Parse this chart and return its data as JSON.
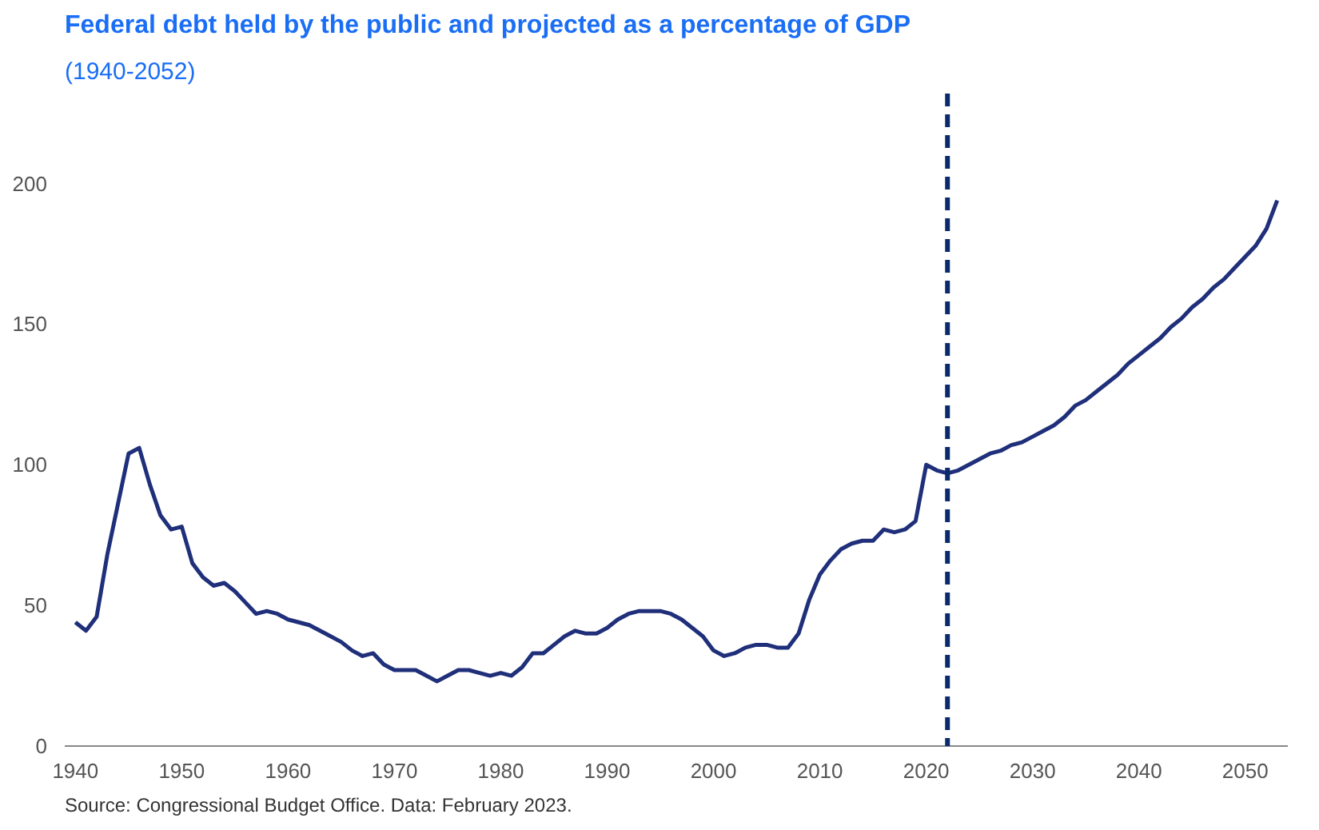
{
  "chart_data": {
    "type": "line",
    "title": "Federal debt held by the public and projected as a percentage of GDP",
    "subtitle": "(1940-2052)",
    "annotations": [
      "Source: Congressional Budget Office. Data: February 2023."
    ],
    "x": [
      1940,
      1941,
      1942,
      1943,
      1944,
      1945,
      1946,
      1947,
      1948,
      1949,
      1950,
      1951,
      1952,
      1953,
      1954,
      1955,
      1956,
      1957,
      1958,
      1959,
      1960,
      1961,
      1962,
      1963,
      1964,
      1965,
      1966,
      1967,
      1968,
      1969,
      1970,
      1971,
      1972,
      1973,
      1974,
      1975,
      1976,
      1977,
      1978,
      1979,
      1980,
      1981,
      1982,
      1983,
      1984,
      1985,
      1986,
      1987,
      1988,
      1989,
      1990,
      1991,
      1992,
      1993,
      1994,
      1995,
      1996,
      1997,
      1998,
      1999,
      2000,
      2001,
      2002,
      2003,
      2004,
      2005,
      2006,
      2007,
      2008,
      2009,
      2010,
      2011,
      2012,
      2013,
      2014,
      2015,
      2016,
      2017,
      2018,
      2019,
      2020,
      2021,
      2022,
      2023,
      2024,
      2025,
      2026,
      2027,
      2028,
      2029,
      2030,
      2031,
      2032,
      2033,
      2034,
      2035,
      2036,
      2037,
      2038,
      2039,
      2040,
      2041,
      2042,
      2043,
      2044,
      2045,
      2046,
      2047,
      2048,
      2049,
      2050,
      2051,
      2052,
      2053
    ],
    "series": [
      {
        "color": "#1f2f7a",
        "values": [
          44,
          41,
          46,
          68,
          86,
          104,
          106,
          93,
          82,
          77,
          78,
          65,
          60,
          57,
          58,
          55,
          51,
          47,
          48,
          47,
          45,
          44,
          43,
          41,
          39,
          37,
          34,
          32,
          33,
          29,
          27,
          27,
          27,
          25,
          23,
          25,
          27,
          27,
          26,
          25,
          26,
          25,
          28,
          33,
          33,
          36,
          39,
          41,
          40,
          40,
          42,
          45,
          47,
          48,
          48,
          48,
          47,
          45,
          42,
          39,
          34,
          32,
          33,
          35,
          36,
          36,
          35,
          35,
          40,
          52,
          61,
          66,
          70,
          72,
          73,
          73,
          77,
          76,
          77,
          80,
          100,
          98,
          97,
          98,
          100,
          102,
          104,
          105,
          107,
          108,
          110,
          112,
          114,
          117,
          121,
          123,
          126,
          129,
          132,
          136,
          139,
          142,
          145,
          149,
          152,
          156,
          159,
          163,
          166,
          170,
          174,
          178,
          184,
          194
        ]
      }
    ],
    "xlim": [
      1939,
      2054
    ],
    "ylim": [
      0,
      232
    ],
    "xticks": [
      1940,
      1950,
      1960,
      1970,
      1980,
      1990,
      2000,
      2010,
      2020,
      2030,
      2040,
      2050
    ],
    "yticks": [
      0,
      50,
      100,
      150,
      200
    ],
    "ref_lines": [
      {
        "axis": "x",
        "value": 2022,
        "color": "#0a2a6b",
        "line_style": "dashed"
      }
    ],
    "grid": false,
    "marker": "none",
    "line_style": "solid"
  }
}
